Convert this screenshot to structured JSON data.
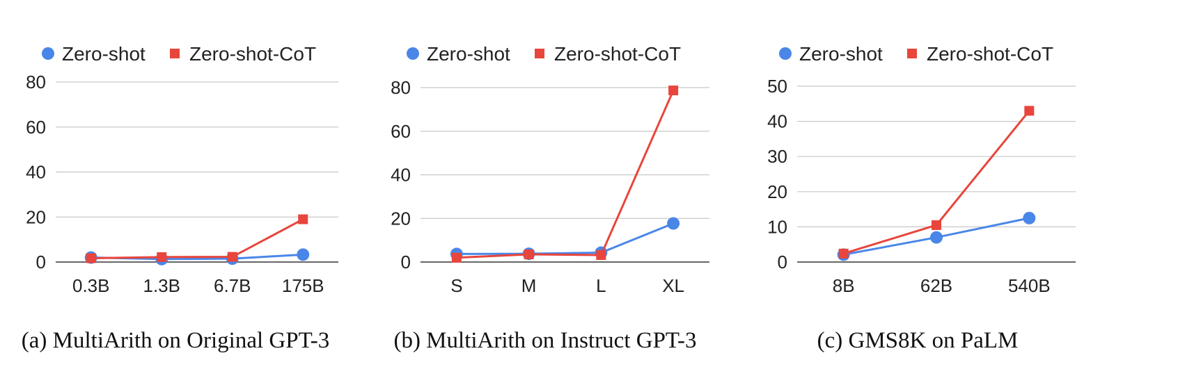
{
  "chart_data": [
    {
      "type": "line",
      "caption": "(a) MultiArith on Original GPT-3",
      "categories": [
        "0.3B",
        "1.3B",
        "6.7B",
        "175B"
      ],
      "ylim": [
        0,
        80
      ],
      "yticks": [
        0,
        20,
        40,
        60,
        80
      ],
      "grid": true,
      "legend_position": "top",
      "series": [
        {
          "name": "Zero-shot",
          "marker": "circle",
          "color": "#4a86e8",
          "values": [
            2.0,
            1.3,
            1.5,
            3.3
          ]
        },
        {
          "name": "Zero-shot-CoT",
          "marker": "square",
          "color": "#e8453c",
          "values": [
            1.7,
            2.2,
            2.3,
            19.0
          ]
        }
      ]
    },
    {
      "type": "line",
      "caption": "(b) MultiArith on Instruct GPT-3",
      "categories": [
        "S",
        "M",
        "L",
        "XL"
      ],
      "ylim": [
        0,
        80
      ],
      "yticks": [
        0,
        20,
        40,
        60,
        80
      ],
      "grid": true,
      "legend_position": "top",
      "series": [
        {
          "name": "Zero-shot",
          "marker": "circle",
          "color": "#4a86e8",
          "values": [
            3.7,
            3.8,
            4.3,
            17.7
          ]
        },
        {
          "name": "Zero-shot-CoT",
          "marker": "square",
          "color": "#e8453c",
          "values": [
            2.0,
            3.5,
            3.2,
            78.7
          ]
        }
      ]
    },
    {
      "type": "line",
      "caption": "(c) GMS8K on PaLM",
      "categories": [
        "8B",
        "62B",
        "540B"
      ],
      "ylim": [
        0,
        50
      ],
      "yticks": [
        0,
        10,
        20,
        30,
        40,
        50
      ],
      "grid": true,
      "legend_position": "top",
      "series": [
        {
          "name": "Zero-shot",
          "marker": "circle",
          "color": "#4a86e8",
          "values": [
            2.1,
            7.0,
            12.5
          ]
        },
        {
          "name": "Zero-shot-CoT",
          "marker": "square",
          "color": "#e8453c",
          "values": [
            2.4,
            10.5,
            43.0
          ]
        }
      ]
    }
  ]
}
